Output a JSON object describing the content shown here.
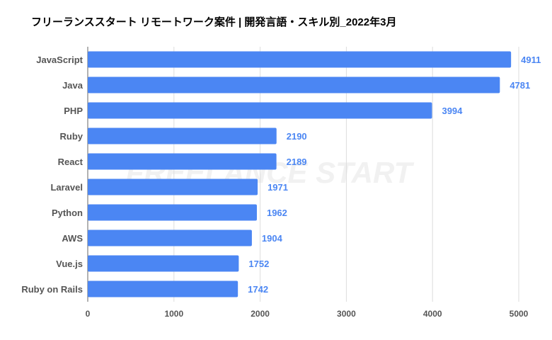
{
  "chart_data": {
    "type": "bar",
    "orientation": "horizontal",
    "title": "フリーランススタート リモートワーク案件 | 開発言語・スキル別_2022年3月",
    "watermark": "FREELANCE START",
    "categories": [
      "JavaScript",
      "Java",
      "PHP",
      "Ruby",
      "React",
      "Laravel",
      "Python",
      "AWS",
      "Vue.js",
      "Ruby on Rails"
    ],
    "values": [
      4911,
      4781,
      3994,
      2190,
      2189,
      1971,
      1962,
      1904,
      1752,
      1742
    ],
    "xlim": [
      0,
      5000
    ],
    "xticks": [
      0,
      1000,
      2000,
      3000,
      4000,
      5000
    ],
    "grid": true,
    "legend": "none",
    "colors": {
      "bar": "#4b86f3",
      "label": "#4b86f3"
    }
  }
}
